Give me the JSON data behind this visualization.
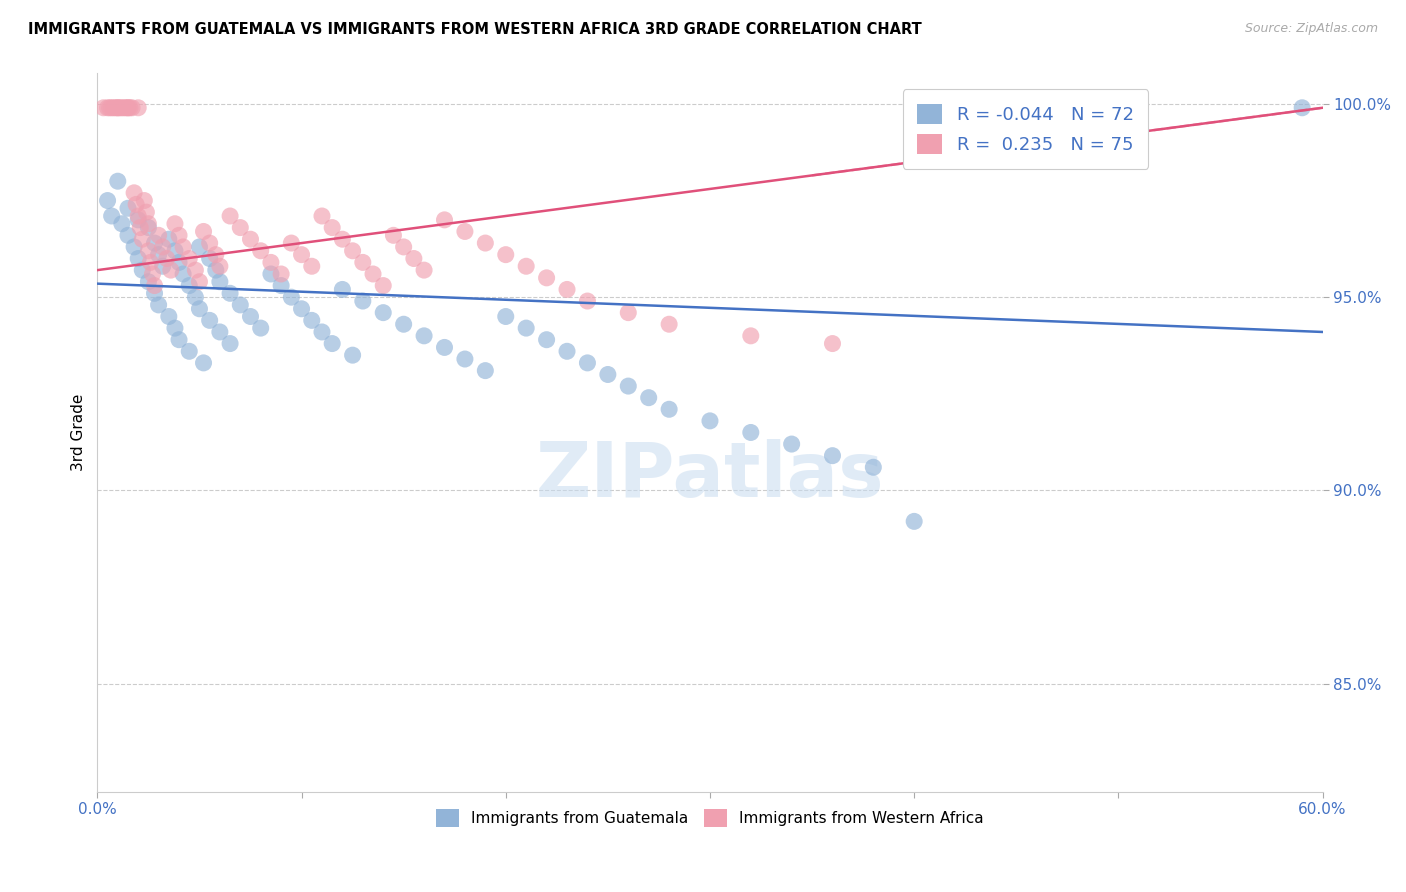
{
  "title": "IMMIGRANTS FROM GUATEMALA VS IMMIGRANTS FROM WESTERN AFRICA 3RD GRADE CORRELATION CHART",
  "source": "Source: ZipAtlas.com",
  "ylabel": "3rd Grade",
  "xlim": [
    0.0,
    0.6
  ],
  "ylim": [
    0.822,
    1.008
  ],
  "xtick_positions": [
    0.0,
    0.1,
    0.2,
    0.3,
    0.4,
    0.5,
    0.6
  ],
  "xtick_labels": [
    "0.0%",
    "",
    "",
    "",
    "",
    "",
    "60.0%"
  ],
  "ytick_positions": [
    0.85,
    0.9,
    0.95,
    1.0
  ],
  "ytick_labels": [
    "85.0%",
    "90.0%",
    "95.0%",
    "100.0%"
  ],
  "legend_blue_R": "-0.044",
  "legend_blue_N": "72",
  "legend_pink_R": "0.235",
  "legend_pink_N": "75",
  "blue_color": "#92B4D8",
  "pink_color": "#F0A0B0",
  "blue_line_color": "#4472C4",
  "pink_line_color": "#E0507A",
  "watermark_text": "ZIPatlas",
  "blue_trend_x": [
    0.0,
    0.6
  ],
  "blue_trend_y": [
    0.9535,
    0.941
  ],
  "pink_trend_x": [
    0.0,
    0.6
  ],
  "pink_trend_y": [
    0.957,
    0.999
  ],
  "blue_x": [
    0.005,
    0.007,
    0.01,
    0.012,
    0.015,
    0.015,
    0.018,
    0.02,
    0.02,
    0.022,
    0.025,
    0.025,
    0.028,
    0.028,
    0.03,
    0.03,
    0.032,
    0.035,
    0.035,
    0.038,
    0.038,
    0.04,
    0.04,
    0.042,
    0.045,
    0.045,
    0.048,
    0.05,
    0.05,
    0.052,
    0.055,
    0.055,
    0.058,
    0.06,
    0.06,
    0.065,
    0.065,
    0.07,
    0.075,
    0.08,
    0.085,
    0.09,
    0.095,
    0.1,
    0.105,
    0.11,
    0.115,
    0.12,
    0.125,
    0.13,
    0.14,
    0.15,
    0.16,
    0.17,
    0.18,
    0.19,
    0.2,
    0.21,
    0.22,
    0.23,
    0.24,
    0.25,
    0.26,
    0.27,
    0.28,
    0.3,
    0.32,
    0.34,
    0.36,
    0.38,
    0.4,
    0.59
  ],
  "blue_y": [
    0.975,
    0.971,
    0.98,
    0.969,
    0.966,
    0.973,
    0.963,
    0.97,
    0.96,
    0.957,
    0.968,
    0.954,
    0.964,
    0.951,
    0.961,
    0.948,
    0.958,
    0.965,
    0.945,
    0.962,
    0.942,
    0.959,
    0.939,
    0.956,
    0.953,
    0.936,
    0.95,
    0.963,
    0.947,
    0.933,
    0.96,
    0.944,
    0.957,
    0.941,
    0.954,
    0.951,
    0.938,
    0.948,
    0.945,
    0.942,
    0.956,
    0.953,
    0.95,
    0.947,
    0.944,
    0.941,
    0.938,
    0.952,
    0.935,
    0.949,
    0.946,
    0.943,
    0.94,
    0.937,
    0.934,
    0.931,
    0.945,
    0.942,
    0.939,
    0.936,
    0.933,
    0.93,
    0.927,
    0.924,
    0.921,
    0.918,
    0.915,
    0.912,
    0.909,
    0.906,
    0.892,
    0.999
  ],
  "pink_x": [
    0.003,
    0.005,
    0.006,
    0.007,
    0.008,
    0.009,
    0.01,
    0.01,
    0.011,
    0.012,
    0.013,
    0.014,
    0.015,
    0.015,
    0.016,
    0.017,
    0.018,
    0.019,
    0.02,
    0.02,
    0.021,
    0.022,
    0.023,
    0.024,
    0.025,
    0.025,
    0.026,
    0.027,
    0.028,
    0.03,
    0.032,
    0.034,
    0.036,
    0.038,
    0.04,
    0.042,
    0.045,
    0.048,
    0.05,
    0.052,
    0.055,
    0.058,
    0.06,
    0.065,
    0.07,
    0.075,
    0.08,
    0.085,
    0.09,
    0.095,
    0.1,
    0.105,
    0.11,
    0.115,
    0.12,
    0.125,
    0.13,
    0.135,
    0.14,
    0.145,
    0.15,
    0.155,
    0.16,
    0.17,
    0.18,
    0.19,
    0.2,
    0.21,
    0.22,
    0.23,
    0.24,
    0.26,
    0.28,
    0.32,
    0.36
  ],
  "pink_y": [
    0.999,
    0.999,
    0.999,
    0.999,
    0.999,
    0.999,
    0.999,
    0.999,
    0.999,
    0.999,
    0.999,
    0.999,
    0.999,
    0.999,
    0.999,
    0.999,
    0.977,
    0.974,
    0.971,
    0.999,
    0.968,
    0.965,
    0.975,
    0.972,
    0.962,
    0.969,
    0.959,
    0.956,
    0.953,
    0.966,
    0.963,
    0.96,
    0.957,
    0.969,
    0.966,
    0.963,
    0.96,
    0.957,
    0.954,
    0.967,
    0.964,
    0.961,
    0.958,
    0.971,
    0.968,
    0.965,
    0.962,
    0.959,
    0.956,
    0.964,
    0.961,
    0.958,
    0.971,
    0.968,
    0.965,
    0.962,
    0.959,
    0.956,
    0.953,
    0.966,
    0.963,
    0.96,
    0.957,
    0.97,
    0.967,
    0.964,
    0.961,
    0.958,
    0.955,
    0.952,
    0.949,
    0.946,
    0.943,
    0.94,
    0.938
  ]
}
